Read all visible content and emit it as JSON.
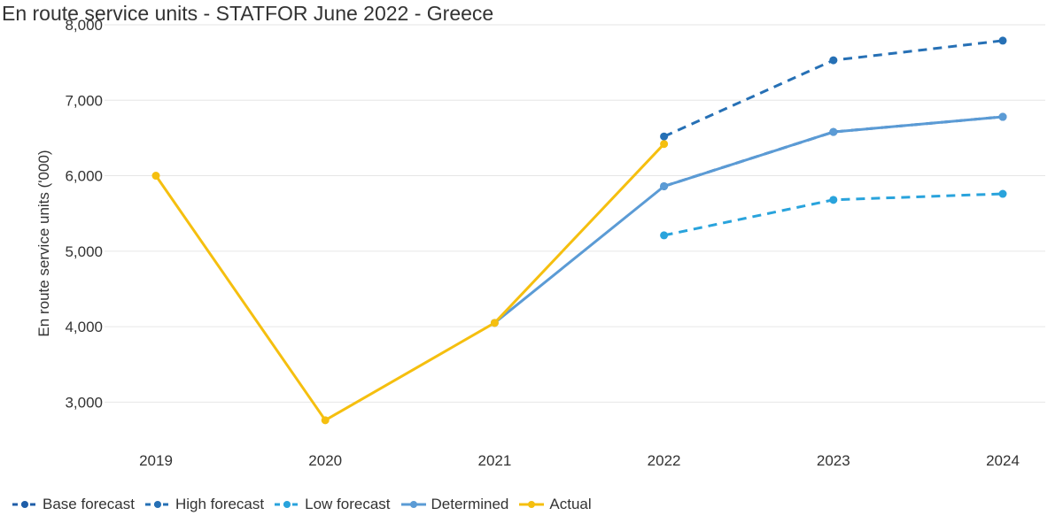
{
  "chart_data": {
    "type": "line",
    "title": "En route service units - STATFOR June 2022 - Greece",
    "ylabel": "En route service units ('000)",
    "xlabel": "",
    "categories": [
      "2019",
      "2020",
      "2021",
      "2022",
      "2023",
      "2024"
    ],
    "y_ticks": [
      "3,000",
      "4,000",
      "5,000",
      "6,000",
      "7,000",
      "8,000"
    ],
    "ylim": [
      2500,
      8000
    ],
    "grid": true,
    "legend_position": "bottom-left",
    "series": [
      {
        "name": "Base forecast",
        "color": "#1f5ea8",
        "dash": true,
        "values": [
          null,
          null,
          null,
          5860,
          6580,
          6780
        ]
      },
      {
        "name": "High forecast",
        "color": "#2670b5",
        "dash": true,
        "values": [
          null,
          null,
          null,
          6520,
          7530,
          7790
        ]
      },
      {
        "name": "Low forecast",
        "color": "#29a3dc",
        "dash": true,
        "values": [
          null,
          null,
          null,
          5210,
          5680,
          5760
        ]
      },
      {
        "name": "Determined",
        "color": "#5b9bd5",
        "dash": false,
        "values": [
          null,
          null,
          4050,
          5860,
          6580,
          6780
        ]
      },
      {
        "name": "Actual",
        "color": "#f5bf0f",
        "dash": false,
        "values": [
          6000,
          2760,
          4050,
          6420,
          null,
          null
        ]
      }
    ]
  }
}
